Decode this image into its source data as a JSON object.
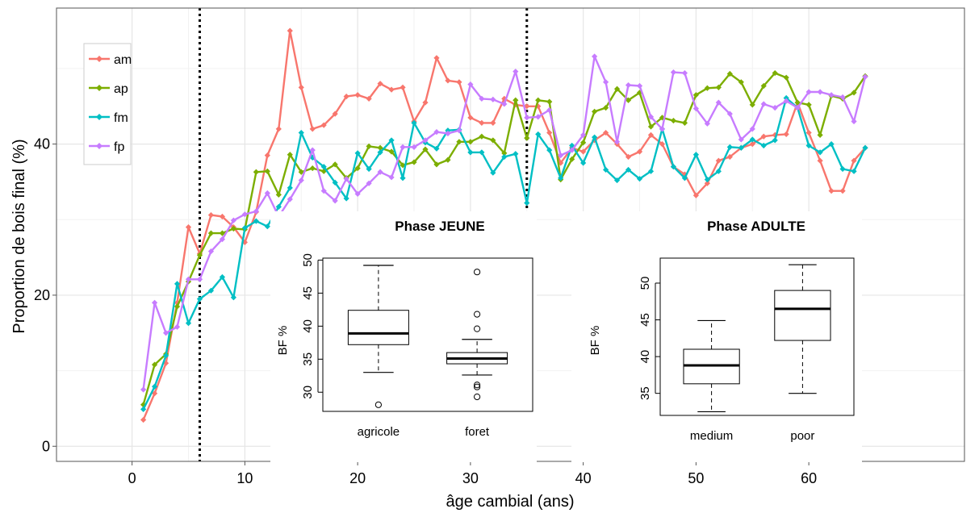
{
  "chart_data": [
    {
      "type": "line",
      "xlabel": "âge cambial (ans)",
      "ylabel": "Proportion de bois final (%)",
      "xlim": [
        -6.7,
        73.8
      ],
      "ylim": [
        -2,
        58
      ],
      "xticks": [
        0,
        10,
        20,
        30,
        40,
        50,
        60
      ],
      "yticks": [
        0,
        20,
        40
      ],
      "grid": true,
      "legend_position": "top-left",
      "vlines": [
        6,
        35
      ],
      "x": [
        1,
        2,
        3,
        4,
        5,
        6,
        7,
        8,
        9,
        10,
        11,
        12,
        13,
        14,
        15,
        16,
        17,
        18,
        19,
        20,
        21,
        22,
        23,
        24,
        25,
        26,
        27,
        28,
        29,
        30,
        31,
        32,
        33,
        34,
        35,
        36,
        37,
        38,
        39,
        40,
        41,
        42,
        43,
        44,
        45,
        46,
        47,
        48,
        49,
        50,
        51,
        52,
        53,
        54,
        55,
        56,
        57,
        58,
        59,
        60,
        61,
        62,
        63,
        64,
        65
      ],
      "series": [
        {
          "name": "am",
          "color": "#F8766D",
          "values": [
            3.5,
            7,
            11,
            19,
            29,
            25.5,
            30.6,
            30.4,
            29,
            27,
            31,
            38.5,
            42,
            55,
            47.5,
            42,
            42.5,
            44,
            46.3,
            46.5,
            46,
            48,
            47.2,
            47.5,
            43,
            45.5,
            51.4,
            48.4,
            48.2,
            43.5,
            42.8,
            42.8,
            46,
            45.2,
            45,
            45,
            41.5,
            37.5,
            39.5,
            39,
            40.5,
            41.5,
            40,
            38.3,
            39,
            41.2,
            40,
            37,
            36,
            33.2,
            34.8,
            37.8,
            38.3,
            39.5,
            40,
            41,
            41.2,
            41.3,
            45.5,
            41.5,
            37.8,
            33.8,
            33.8,
            37.8,
            39.5
          ]
        },
        {
          "name": "ap",
          "color": "#7CAE00",
          "values": [
            5.5,
            10.8,
            12.2,
            18.5,
            21.8,
            25.3,
            28.2,
            28.2,
            28.8,
            28.7,
            36.3,
            36.4,
            33.3,
            38.6,
            36.3,
            36.8,
            36.4,
            37.3,
            35.5,
            36.8,
            39.7,
            39.5,
            39,
            37.2,
            37.6,
            39.3,
            37.3,
            37.9,
            40.3,
            40.3,
            41,
            40.5,
            38.8,
            45.8,
            40.8,
            45.8,
            45.6,
            35.3,
            38,
            40.2,
            44.3,
            44.8,
            47.3,
            45.8,
            46.8,
            42.3,
            43.5,
            43.1,
            42.8,
            46.5,
            47.4,
            47.5,
            49.3,
            48.2,
            45.2,
            47.7,
            49.4,
            48.8,
            45.5,
            45.2,
            41.2,
            46.4,
            46,
            46.8,
            49
          ]
        },
        {
          "name": "fm",
          "color": "#00BFC4",
          "values": [
            4.9,
            7.9,
            12,
            21.5,
            16.3,
            19.5,
            20.6,
            22.4,
            19.7,
            28.9,
            29.8,
            29.1,
            31.7,
            34.2,
            41.5,
            38.2,
            37,
            34.9,
            32.8,
            38.8,
            36.7,
            38.9,
            40.5,
            35.5,
            42.8,
            40.2,
            39.4,
            41.8,
            41.9,
            38.9,
            38.9,
            36.2,
            38.3,
            38.7,
            32.2,
            41.3,
            39.2,
            35.5,
            39.8,
            37.5,
            40.9,
            36.6,
            35.2,
            36.6,
            35.4,
            36.4,
            42,
            37,
            35.5,
            38.6,
            35.3,
            36.4,
            39.6,
            39.5,
            40.6,
            39.8,
            40.5,
            46.1,
            44.8,
            39.8,
            38.9,
            40,
            36.7,
            36.4,
            39.5
          ]
        },
        {
          "name": "fp",
          "color": "#C77CFF",
          "values": [
            7.5,
            19,
            15,
            15.8,
            22.1,
            22.1,
            25.8,
            27.4,
            29.9,
            30.7,
            31.1,
            33.5,
            30.4,
            32.7,
            35.2,
            39.2,
            33.8,
            32.5,
            35.4,
            33.4,
            34.8,
            36.3,
            35.6,
            39.6,
            39.6,
            40.5,
            41.6,
            41.4,
            41.8,
            47.9,
            46,
            45.9,
            45.3,
            49.6,
            43.5,
            43.6,
            44.5,
            38.5,
            39.2,
            41.2,
            51.6,
            48.2,
            40.3,
            47.8,
            47.7,
            43.6,
            42,
            49.5,
            49.4,
            44.7,
            42.7,
            45.5,
            44,
            40.6,
            42,
            45.3,
            44.8,
            45.7,
            44.8,
            46.9,
            46.9,
            46.5,
            46.2,
            43,
            48.9
          ]
        }
      ]
    },
    {
      "type": "boxplot",
      "title": "Phase JEUNE",
      "ylabel": "BF %",
      "ylim": [
        27.1,
        50.3
      ],
      "yticks": [
        30,
        35,
        40,
        45,
        50
      ],
      "categories": [
        "agricole",
        "foret"
      ],
      "boxes": [
        {
          "whisker_low": 33,
          "q1": 37.2,
          "median": 38.9,
          "q3": 42.4,
          "whisker_high": 49.2,
          "outliers": [
            28.1
          ]
        },
        {
          "whisker_low": 32.6,
          "q1": 34.3,
          "median": 35.1,
          "q3": 36,
          "whisker_high": 38,
          "outliers": [
            48.2,
            41.8,
            39.6,
            31.1,
            30.8,
            29.3
          ]
        }
      ]
    },
    {
      "type": "boxplot",
      "title": "Phase ADULTE",
      "ylabel": "BF %",
      "ylim": [
        32,
        53.4
      ],
      "yticks": [
        35,
        40,
        45,
        50
      ],
      "categories": [
        "medium",
        "poor"
      ],
      "boxes": [
        {
          "whisker_low": 32.5,
          "q1": 36.3,
          "median": 38.8,
          "q3": 41,
          "whisker_high": 44.9,
          "outliers": []
        },
        {
          "whisker_low": 35,
          "q1": 42.2,
          "median": 46.5,
          "q3": 49,
          "whisker_high": 52.5,
          "outliers": []
        }
      ]
    }
  ]
}
